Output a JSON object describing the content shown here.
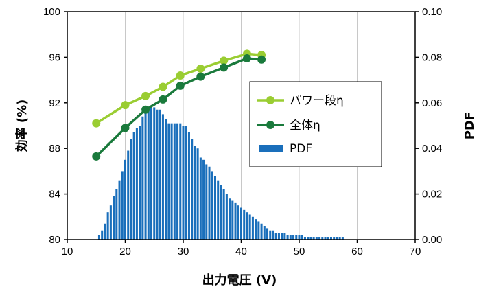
{
  "chart_data": {
    "type": "bar+line",
    "xlabel": "出力電圧 (V)",
    "ylabel_left": "効率 (%)",
    "ylabel_right": "PDF",
    "xlim": [
      10,
      70
    ],
    "ylim_left": [
      80,
      100
    ],
    "ylim_right": [
      0,
      0.1
    ],
    "x_ticks": [
      "10",
      "20",
      "30",
      "40",
      "50",
      "60",
      "70"
    ],
    "y_left_ticks": [
      "80",
      "84",
      "88",
      "92",
      "96",
      "100"
    ],
    "y_right_ticks": [
      "0.00",
      "0.02",
      "0.04",
      "0.06",
      "0.08",
      "0.10"
    ],
    "grid": "vertical",
    "legend_position": "right-center",
    "series": [
      {
        "name": "パワー段η",
        "type": "line",
        "axis": "left",
        "color": "#9acd32",
        "x": [
          15,
          20,
          23.5,
          26.5,
          29.5,
          33,
          37,
          41,
          43.5
        ],
        "y": [
          90.2,
          91.8,
          92.6,
          93.4,
          94.4,
          95.0,
          95.7,
          96.3,
          96.2
        ]
      },
      {
        "name": "全体η",
        "type": "line",
        "axis": "left",
        "color": "#1a7a3c",
        "x": [
          15,
          20,
          23.5,
          26.5,
          29.5,
          33,
          37,
          41,
          43.5
        ],
        "y": [
          87.3,
          89.8,
          91.4,
          92.3,
          93.5,
          94.3,
          95.1,
          95.9,
          95.8
        ]
      },
      {
        "name": "PDF",
        "type": "bar",
        "axis": "right",
        "color": "#1a6fbb",
        "x": [
          15.5,
          16,
          16.5,
          17,
          17.5,
          18,
          18.5,
          19,
          19.5,
          20,
          20.5,
          21,
          21.5,
          22,
          22.5,
          23,
          23.5,
          24,
          24.5,
          25,
          25.5,
          26,
          26.5,
          27,
          27.5,
          28,
          28.5,
          29,
          29.5,
          30,
          30.5,
          31,
          31.5,
          32,
          32.5,
          33,
          33.5,
          34,
          34.5,
          35,
          35.5,
          36,
          36.5,
          37,
          37.5,
          38,
          38.5,
          39,
          39.5,
          40,
          40.5,
          41,
          41.5,
          42,
          42.5,
          43,
          43.5,
          44,
          44.5,
          45,
          45.5,
          46,
          46.5,
          47,
          47.5,
          48,
          48.5,
          49,
          49.5,
          50,
          50.5,
          51,
          51.5,
          52,
          52.5,
          53,
          53.5,
          54,
          54.5,
          55,
          55.5,
          56,
          56.5,
          57,
          57.5
        ],
        "y": [
          0.002,
          0.004,
          0.007,
          0.012,
          0.015,
          0.019,
          0.022,
          0.026,
          0.03,
          0.035,
          0.039,
          0.044,
          0.047,
          0.049,
          0.05,
          0.054,
          0.057,
          0.058,
          0.058,
          0.058,
          0.057,
          0.057,
          0.055,
          0.053,
          0.051,
          0.051,
          0.051,
          0.051,
          0.051,
          0.05,
          0.05,
          0.047,
          0.044,
          0.041,
          0.04,
          0.036,
          0.035,
          0.033,
          0.032,
          0.03,
          0.028,
          0.026,
          0.024,
          0.022,
          0.02,
          0.018,
          0.017,
          0.016,
          0.015,
          0.014,
          0.013,
          0.012,
          0.011,
          0.01,
          0.009,
          0.008,
          0.007,
          0.006,
          0.005,
          0.004,
          0.004,
          0.003,
          0.003,
          0.003,
          0.003,
          0.002,
          0.002,
          0.002,
          0.002,
          0.002,
          0.002,
          0.001,
          0.001,
          0.001,
          0.001,
          0.001,
          0.001,
          0.001,
          0.001,
          0.001,
          0.001,
          0.001,
          0.001,
          0.001,
          0.001
        ]
      }
    ]
  }
}
